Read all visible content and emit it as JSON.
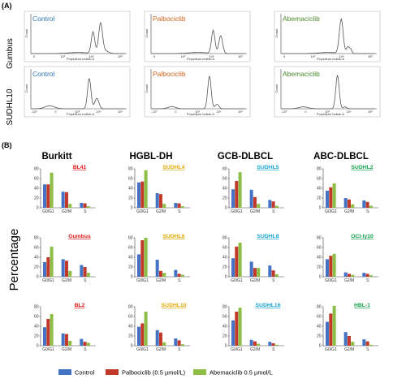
{
  "panelA": {
    "label": "(A)",
    "rows": [
      "Gumbus",
      "SUDHL10"
    ],
    "xlabel": "Propidium Iodide-A",
    "ylabel": "Count",
    "xticks_row1": [
      "0",
      "10³",
      "10⁴",
      "10⁵"
    ],
    "xticks_row2": [
      "-10³",
      "0",
      "10³",
      "10⁴",
      "10⁵"
    ],
    "cols": [
      {
        "label": "Control",
        "color": "#2e75b6"
      },
      {
        "label": "Palbociclib",
        "color": "#d0621b"
      },
      {
        "label": "Abemaciclib",
        "color": "#4c8a2c"
      }
    ]
  },
  "panelB": {
    "label": "(B)",
    "ylabel": "Percentage",
    "groups": [
      {
        "title": "Burkitt",
        "color": "#e01818"
      },
      {
        "title": "HGBL-DH",
        "color": "#e0a800"
      },
      {
        "title": "GCB-DLBCL",
        "color": "#12a3cc"
      },
      {
        "title": "ABC-DLBCL",
        "color": "#12a04a"
      }
    ]
  },
  "chart_data": {
    "type": "bar",
    "categories": [
      "G0/G1",
      "G2/M",
      "S"
    ],
    "y_ticks": [
      0,
      20,
      40,
      60,
      80
    ],
    "ylim": [
      0,
      80
    ],
    "legend": [
      {
        "name": "Control",
        "color": "#4472c4"
      },
      {
        "name": "Palbociclib (0.5 µmol/L)",
        "color": "#c0392b"
      },
      {
        "name": "Abemaciclib  0.5 µmol/L",
        "color": "#8cbd45"
      }
    ],
    "cells": [
      {
        "name": "BL41",
        "group": 0,
        "values": [
          [
            48,
            48,
            72
          ],
          [
            33,
            32,
            8
          ],
          [
            10,
            9,
            3
          ]
        ]
      },
      {
        "name": "SUDHL4",
        "group": 1,
        "values": [
          [
            52,
            54,
            77
          ],
          [
            30,
            28,
            8
          ],
          [
            10,
            9,
            3
          ]
        ]
      },
      {
        "name": "SUDHL5",
        "group": 2,
        "values": [
          [
            38,
            55,
            73
          ],
          [
            37,
            22,
            8
          ],
          [
            16,
            13,
            4
          ]
        ]
      },
      {
        "name": "SUDHL2",
        "group": 3,
        "values": [
          [
            35,
            42,
            50
          ],
          [
            20,
            17,
            7
          ],
          [
            15,
            12,
            4
          ]
        ]
      },
      {
        "name": "Gumbus",
        "group": 0,
        "values": [
          [
            30,
            40,
            62
          ],
          [
            36,
            33,
            12
          ],
          [
            24,
            20,
            8
          ]
        ]
      },
      {
        "name": "SUDHL6",
        "group": 1,
        "values": [
          [
            46,
            75,
            80
          ],
          [
            35,
            12,
            8
          ],
          [
            14,
            6,
            4
          ]
        ]
      },
      {
        "name": "SUDHL8",
        "group": 2,
        "values": [
          [
            38,
            62,
            70
          ],
          [
            31,
            18,
            18
          ],
          [
            23,
            13,
            5
          ]
        ]
      },
      {
        "name": "OCI-ly10",
        "group": 3,
        "values": [
          [
            36,
            43,
            47
          ],
          [
            9,
            6,
            4
          ],
          [
            8,
            6,
            3
          ]
        ]
      },
      {
        "name": "BL2",
        "group": 0,
        "values": [
          [
            38,
            55,
            65
          ],
          [
            25,
            24,
            10
          ],
          [
            14,
            8,
            6
          ]
        ]
      },
      {
        "name": "SUDHL10",
        "group": 1,
        "values": [
          [
            39,
            46,
            70
          ],
          [
            32,
            27,
            7
          ],
          [
            15,
            11,
            3
          ]
        ]
      },
      {
        "name": "SUDHL16",
        "group": 2,
        "values": [
          [
            52,
            70,
            78
          ],
          [
            12,
            9,
            4
          ],
          [
            8,
            5,
            2
          ]
        ]
      },
      {
        "name": "HBL-1",
        "group": 3,
        "values": [
          [
            49,
            66,
            82
          ],
          [
            28,
            20,
            8
          ],
          [
            13,
            9,
            2
          ]
        ]
      }
    ]
  }
}
